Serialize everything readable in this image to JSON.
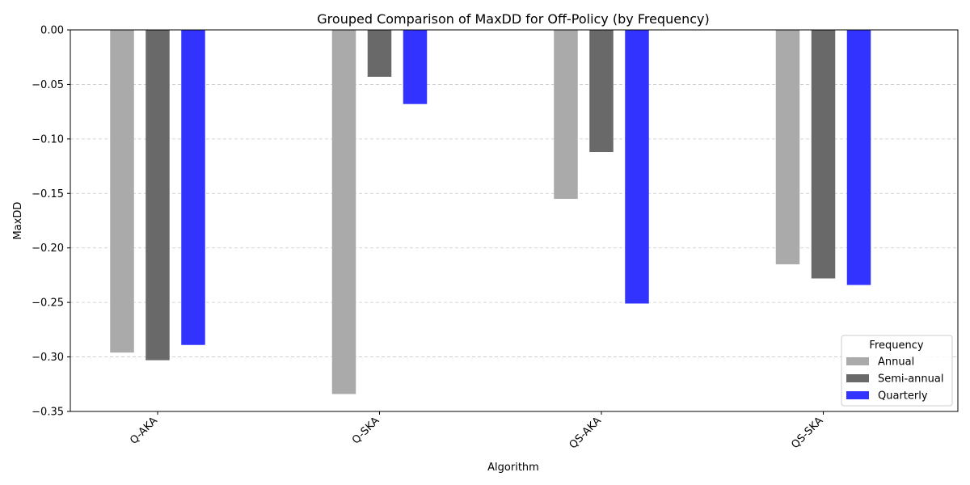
{
  "chart_data": {
    "type": "bar",
    "title": "Grouped Comparison of MaxDD for Off-Policy (by Frequency)",
    "xlabel": "Algorithm",
    "ylabel": "MaxDD",
    "categories": [
      "Q-AKA",
      "Q-SKA",
      "QS-AKA",
      "QS-SKA"
    ],
    "series": [
      {
        "name": "Annual",
        "color": "#aaaaaa",
        "values": [
          -0.296,
          -0.334,
          -0.155,
          -0.215
        ]
      },
      {
        "name": "Semi-annual",
        "color": "#696969",
        "values": [
          -0.303,
          -0.043,
          -0.112,
          -0.228
        ]
      },
      {
        "name": "Quarterly",
        "color": "#3333ff",
        "values": [
          -0.289,
          -0.068,
          -0.251,
          -0.234
        ]
      }
    ],
    "ylim": [
      -0.35,
      0.0
    ],
    "yticks": [
      0.0,
      -0.05,
      -0.1,
      -0.15,
      -0.2,
      -0.25,
      -0.3,
      -0.35
    ],
    "ytick_labels": [
      "0.00",
      "−0.05",
      "−0.10",
      "−0.15",
      "−0.20",
      "−0.25",
      "−0.30",
      "−0.35"
    ],
    "grid": "y-dashed",
    "legend": {
      "title": "Frequency",
      "placement": "bottom-right"
    }
  }
}
